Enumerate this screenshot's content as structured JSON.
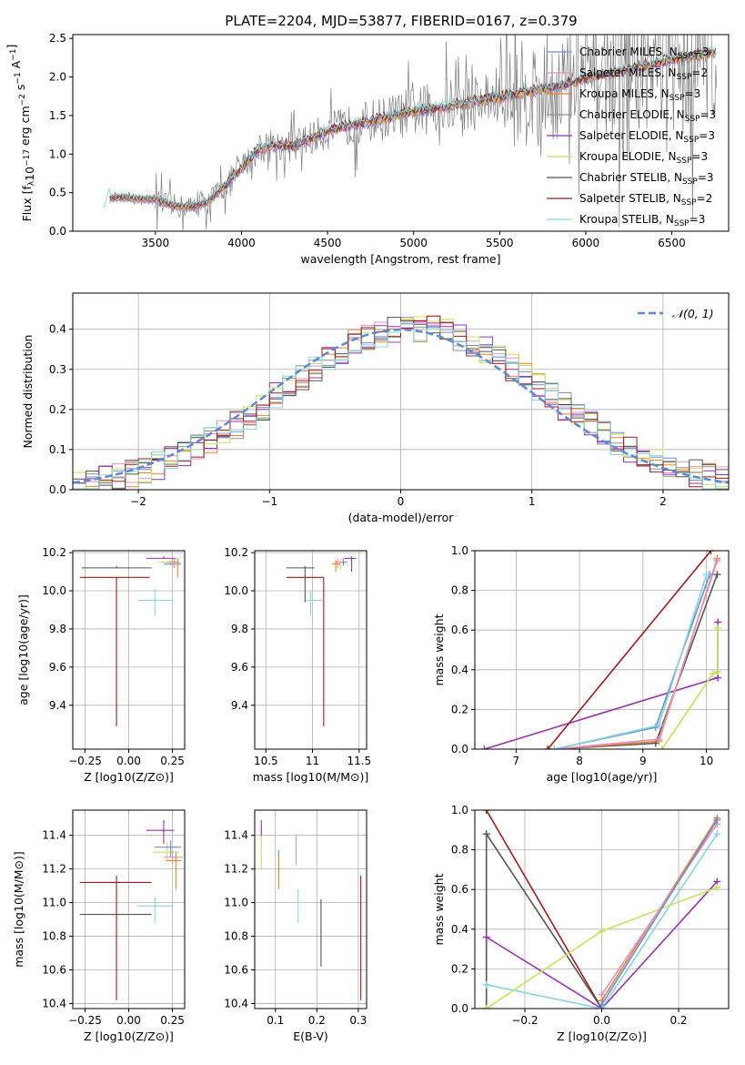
{
  "figure_title": "PLATE=2204, MJD=53877, FIBERID=0167, z=0.379",
  "series_colors": {
    "Chabrier MILES": "#6a8fd9",
    "Salpeter MILES": "#e58fc4",
    "Kroupa MILES": "#e8862a",
    "Chabrier ELODIE": "#8f8f8f",
    "Salpeter ELODIE": "#9b2fb0",
    "Kroupa ELODIE": "#c9e05a",
    "Chabrier STELIB": "#555555",
    "Salpeter STELIB": "#a31a1a",
    "Kroupa STELIB": "#86d6e0"
  },
  "chart_data": [
    {
      "id": "spectrum",
      "type": "line",
      "xlabel": "wavelength [Angstrom, rest frame]",
      "ylabel": "Flux [f_λ 10^-17 erg cm^-2 s^-1 A^-1]",
      "xlim": [
        3020,
        6830
      ],
      "ylim": [
        0,
        2.55
      ],
      "xticks": [
        3500,
        4000,
        4500,
        5000,
        5500,
        6000,
        6500
      ],
      "yticks": [
        0.0,
        0.5,
        1.0,
        1.5,
        2.0,
        2.5
      ],
      "legend_position": "upper-right",
      "legend": [
        {
          "label": "Chabrier MILES, N",
          "sub": "SSP",
          "tail": "=3",
          "color": "#6a8fd9"
        },
        {
          "label": "Salpeter MILES, N",
          "sub": "SSP",
          "tail": "=2",
          "color": "#e58fc4"
        },
        {
          "label": "Kroupa MILES, N",
          "sub": "SSP",
          "tail": "=3",
          "color": "#e8862a"
        },
        {
          "label": "Chabrier ELODIE, N",
          "sub": "SSP",
          "tail": "=3",
          "color": "#8f8f8f"
        },
        {
          "label": "Salpeter ELODIE, N",
          "sub": "SSP",
          "tail": "=3",
          "color": "#9b2fb0"
        },
        {
          "label": "Kroupa ELODIE, N",
          "sub": "SSP",
          "tail": "=3",
          "color": "#c9e05a"
        },
        {
          "label": "Chabrier STELIB, N",
          "sub": "SSP",
          "tail": "=3",
          "color": "#555555"
        },
        {
          "label": "Salpeter STELIB, N",
          "sub": "SSP",
          "tail": "=2",
          "color": "#a31a1a"
        },
        {
          "label": "Kroupa STELIB, N",
          "sub": "SSP",
          "tail": "=3",
          "color": "#86d6e0"
        }
      ],
      "data_start": 3500,
      "model_curve": {
        "x": [
          3200,
          3230,
          3300,
          3400,
          3500,
          3600,
          3700,
          3800,
          3900,
          4000,
          4100,
          4200,
          4300,
          4400,
          4500,
          4600,
          4700,
          4800,
          4900,
          5000,
          5200,
          5400,
          5600,
          5800,
          6000,
          6200,
          6400,
          6600,
          6750
        ],
        "y": [
          0.32,
          0.43,
          0.44,
          0.42,
          0.41,
          0.33,
          0.31,
          0.37,
          0.58,
          0.82,
          1.06,
          1.12,
          1.1,
          1.2,
          1.3,
          1.36,
          1.4,
          1.45,
          1.5,
          1.55,
          1.62,
          1.7,
          1.78,
          1.86,
          1.98,
          2.08,
          2.17,
          2.26,
          2.32
        ]
      }
    },
    {
      "id": "residuals",
      "type": "histogram",
      "xlabel": "(data-model)/error",
      "ylabel": "Normed distribution",
      "xlim": [
        -2.5,
        2.5
      ],
      "ylim": [
        0,
        0.49
      ],
      "xticks": [
        -2,
        -1,
        0,
        1,
        2
      ],
      "yticks": [
        0.0,
        0.1,
        0.2,
        0.3,
        0.4
      ],
      "reference_curve": {
        "label": "𝒩(0, 1)",
        "mean": 0,
        "sigma": 1,
        "color": "#5b8ad8",
        "style": "dashed"
      },
      "bin_width": 0.1,
      "approx_max": 0.47
    },
    {
      "id": "age-vs-Z",
      "type": "errorbar",
      "xlabel": "Z [log10(Z/Z⊙)]",
      "ylabel": "age [log10(age/yr)]",
      "xlim": [
        -0.32,
        0.32
      ],
      "ylim": [
        9.17,
        10.21
      ],
      "xticks": [
        -0.25,
        0.0,
        0.25
      ],
      "xticklabels": [
        "−0.25",
        "0.00",
        "0.25"
      ],
      "yticks": [
        9.4,
        9.6,
        9.8,
        10.0,
        10.2
      ],
      "points": [
        {
          "series": "Chabrier STELIB",
          "x": -0.07,
          "xerr": [
            0.2,
            0.2
          ],
          "y": 10.12,
          "yerr": [
            0.0,
            0.01
          ],
          "color": "#555555"
        },
        {
          "series": "Salpeter STELIB",
          "x": -0.07,
          "xerr": [
            0.21,
            0.19
          ],
          "y": 10.07,
          "yerr": [
            0.78,
            0.0
          ],
          "color": "#a31a1a"
        },
        {
          "series": "Kroupa STELIB",
          "x": 0.15,
          "xerr": [
            0.1,
            0.1
          ],
          "y": 9.95,
          "yerr": [
            0.08,
            0.06
          ],
          "color": "#86d6e0"
        },
        {
          "series": "Salpeter ELODIE",
          "x": 0.2,
          "xerr": [
            0.1,
            0.07
          ],
          "y": 10.17,
          "yerr": [
            0.0,
            0.01
          ],
          "color": "#9b2fb0"
        },
        {
          "series": "Kroupa ELODIE",
          "x": 0.24,
          "xerr": [
            0.07,
            0.05
          ],
          "y": 10.15,
          "yerr": [
            0.02,
            0.02
          ],
          "color": "#c9e05a"
        },
        {
          "series": "Chabrier MILES",
          "x": 0.26,
          "xerr": [
            0.06,
            0.04
          ],
          "y": 10.14,
          "yerr": [
            0.02,
            0.03
          ],
          "color": "#6a8fd9"
        },
        {
          "series": "Salpeter MILES",
          "x": 0.26,
          "xerr": [
            0.04,
            0.03
          ],
          "y": 10.15,
          "yerr": [
            0.03,
            0.02
          ],
          "color": "#e58fc4"
        },
        {
          "series": "Kroupa MILES",
          "x": 0.28,
          "xerr": [
            0.03,
            0.01
          ],
          "y": 10.15,
          "yerr": [
            0.08,
            0.02
          ],
          "color": "#e8862a"
        }
      ]
    },
    {
      "id": "age-vs-mass",
      "type": "errorbar",
      "xlabel": "mass [log10(M/M⊙)]",
      "ylabel": "",
      "xlim": [
        10.38,
        11.58
      ],
      "ylim": [
        9.17,
        10.21
      ],
      "xticks": [
        10.5,
        11.0,
        11.5
      ],
      "yticks": [
        9.4,
        9.6,
        9.8,
        10.0,
        10.2
      ],
      "points": [
        {
          "series": "Chabrier STELIB",
          "x": 10.92,
          "xerr": [
            0.2,
            0.1
          ],
          "y": 10.12,
          "yerr": [
            0.18,
            0.01
          ],
          "color": "#555555"
        },
        {
          "series": "Salpeter STELIB",
          "x": 11.12,
          "xerr": [
            0.4,
            0.0
          ],
          "y": 10.07,
          "yerr": [
            0.78,
            0.0
          ],
          "color": "#a31a1a"
        },
        {
          "series": "Kroupa STELIB",
          "x": 10.98,
          "xerr": [
            0.05,
            0.12
          ],
          "y": 9.95,
          "yerr": [
            0.08,
            0.05
          ],
          "color": "#86d6e0"
        },
        {
          "series": "Salpeter ELODIE",
          "x": 11.42,
          "xerr": [
            0.08,
            0.05
          ],
          "y": 10.17,
          "yerr": [
            0.07,
            0.01
          ],
          "color": "#9b2fb0"
        },
        {
          "series": "Kroupa ELODIE",
          "x": 11.3,
          "xerr": [
            0.05,
            0.05
          ],
          "y": 10.15,
          "yerr": [
            0.04,
            0.02
          ],
          "color": "#c9e05a"
        },
        {
          "series": "Chabrier MILES",
          "x": 11.33,
          "xerr": [
            0.06,
            0.04
          ],
          "y": 10.15,
          "yerr": [
            0.02,
            0.02
          ],
          "color": "#6a8fd9"
        },
        {
          "series": "Salpeter MILES",
          "x": 11.27,
          "xerr": [
            0.03,
            0.04
          ],
          "y": 10.15,
          "yerr": [
            0.03,
            0.02
          ],
          "color": "#e58fc4"
        },
        {
          "series": "Kroupa MILES",
          "x": 11.25,
          "xerr": [
            0.04,
            0.05
          ],
          "y": 10.14,
          "yerr": [
            0.04,
            0.02
          ],
          "color": "#e8862a"
        }
      ]
    },
    {
      "id": "weight-vs-age",
      "type": "line",
      "xlabel": "age [log10(age/yr)]",
      "ylabel": "mass weight",
      "xlim": [
        6.35,
        10.35
      ],
      "ylim": [
        0,
        1.0
      ],
      "xticks": [
        7,
        8,
        9,
        10
      ],
      "yticks": [
        0.0,
        0.2,
        0.4,
        0.6,
        0.8,
        1.0
      ],
      "series": [
        {
          "name": "Salpeter ELODIE",
          "color": "#9b2fb0",
          "x": [
            6.5,
            10.18,
            10.18
          ],
          "y": [
            0.0,
            0.36,
            0.64
          ]
        },
        {
          "name": "Salpeter STELIB",
          "color": "#a31a1a",
          "x": [
            7.5,
            10.07
          ],
          "y": [
            0.0,
            1.0
          ]
        },
        {
          "name": "Chabrier STELIB",
          "color": "#555555",
          "x": [
            7.6,
            9.2,
            10.17
          ],
          "y": [
            0.0,
            0.03,
            0.88
          ]
        },
        {
          "name": "Kroupa MILES",
          "color": "#e8862a",
          "x": [
            7.6,
            9.25,
            10.17
          ],
          "y": [
            0.0,
            0.04,
            0.96
          ]
        },
        {
          "name": "Salpeter MILES",
          "color": "#e58fc4",
          "x": [
            7.6,
            9.25,
            10.17
          ],
          "y": [
            0.0,
            0.05,
            0.95
          ]
        },
        {
          "name": "Chabrier MILES",
          "color": "#6a8fd9",
          "x": [
            7.6,
            9.2,
            10.05
          ],
          "y": [
            0.0,
            0.11,
            0.88
          ]
        },
        {
          "name": "Kroupa STELIB",
          "color": "#86d6e0",
          "x": [
            7.6,
            9.25,
            10.0
          ],
          "y": [
            0.0,
            0.12,
            0.88
          ]
        },
        {
          "name": "Kroupa ELODIE",
          "color": "#c9e05a",
          "x": [
            9.3,
            10.1,
            10.18,
            10.18
          ],
          "y": [
            0.0,
            0.38,
            0.39,
            0.61
          ]
        }
      ]
    },
    {
      "id": "mass-vs-Z",
      "type": "errorbar",
      "xlabel": "Z [log10(Z/Z⊙)]",
      "ylabel": "mass [log10(M/M⊙)]",
      "xlim": [
        -0.32,
        0.32
      ],
      "ylim": [
        10.37,
        11.55
      ],
      "xticks": [
        -0.25,
        0.0,
        0.25
      ],
      "xticklabels": [
        "−0.25",
        "0.00",
        "0.25"
      ],
      "yticks": [
        10.4,
        10.6,
        10.8,
        11.0,
        11.2,
        11.4
      ],
      "points": [
        {
          "series": "Chabrier STELIB",
          "x": -0.07,
          "xerr": [
            0.21,
            0.2
          ],
          "y": 10.93,
          "yerr": [
            0.0,
            0.0
          ],
          "color": "#555555"
        },
        {
          "series": "Salpeter STELIB",
          "x": -0.07,
          "xerr": [
            0.21,
            0.2
          ],
          "y": 11.12,
          "yerr": [
            0.7,
            0.04
          ],
          "color": "#a31a1a"
        },
        {
          "series": "Kroupa STELIB",
          "x": 0.15,
          "xerr": [
            0.1,
            0.1
          ],
          "y": 10.98,
          "yerr": [
            0.1,
            0.05
          ],
          "color": "#86d6e0"
        },
        {
          "series": "Salpeter ELODIE",
          "x": 0.2,
          "xerr": [
            0.1,
            0.06
          ],
          "y": 11.43,
          "yerr": [
            0.08,
            0.06
          ],
          "color": "#9b2fb0"
        },
        {
          "series": "Kroupa ELODIE",
          "x": 0.22,
          "xerr": [
            0.08,
            0.07
          ],
          "y": 11.3,
          "yerr": [
            0.05,
            0.06
          ],
          "color": "#c9e05a"
        },
        {
          "series": "Chabrier MILES",
          "x": 0.24,
          "xerr": [
            0.09,
            0.06
          ],
          "y": 11.33,
          "yerr": [
            0.06,
            0.04
          ],
          "color": "#6a8fd9"
        },
        {
          "series": "Salpeter MILES",
          "x": 0.25,
          "xerr": [
            0.05,
            0.06
          ],
          "y": 11.27,
          "yerr": [
            0.04,
            0.03
          ],
          "color": "#e58fc4"
        },
        {
          "series": "Kroupa MILES",
          "x": 0.27,
          "xerr": [
            0.06,
            0.03
          ],
          "y": 11.25,
          "yerr": [
            0.17,
            0.05
          ],
          "color": "#e8862a"
        }
      ]
    },
    {
      "id": "mass-vs-ebv",
      "type": "errorbar",
      "xlabel": "E(B-V)",
      "ylabel": "",
      "xlim": [
        0.05,
        0.32
      ],
      "ylim": [
        10.37,
        11.55
      ],
      "xticks": [
        0.1,
        0.2,
        0.3
      ],
      "yticks": [
        10.4,
        10.6,
        10.8,
        11.0,
        11.2,
        11.4
      ],
      "points": [
        {
          "series": "Salpeter ELODIE",
          "x": 0.066,
          "xerr": [
            0,
            0
          ],
          "y": 11.43,
          "yerr": [
            0.04,
            0.06
          ],
          "color": "#9b2fb0"
        },
        {
          "series": "Kroupa ELODIE",
          "x": 0.066,
          "xerr": [
            0,
            0
          ],
          "y": 11.3,
          "yerr": [
            0.1,
            0.1
          ],
          "color": "#c9e05a"
        },
        {
          "series": "Chabrier MILES",
          "x": 0.108,
          "xerr": [
            0,
            0
          ],
          "y": 11.22,
          "yerr": [
            0.08,
            0.09
          ],
          "color": "#6a8fd9"
        },
        {
          "series": "Kroupa MILES",
          "x": 0.108,
          "xerr": [
            0,
            0
          ],
          "y": 11.18,
          "yerr": [
            0.1,
            0.1
          ],
          "color": "#e8862a"
        },
        {
          "series": "Salpeter MILES",
          "x": 0.15,
          "xerr": [
            0,
            0
          ],
          "y": 11.3,
          "yerr": [
            0.08,
            0.1
          ],
          "color": "#e58fc4"
        },
        {
          "series": "Kroupa STELIB",
          "x": 0.155,
          "xerr": [
            0,
            0
          ],
          "y": 10.98,
          "yerr": [
            0.1,
            0.1
          ],
          "color": "#86d6e0"
        },
        {
          "series": "Chabrier STELIB",
          "x": 0.21,
          "xerr": [
            0,
            0
          ],
          "y": 10.82,
          "yerr": [
            0.2,
            0.2
          ],
          "color": "#555555"
        },
        {
          "series": "Salpeter STELIB",
          "x": 0.306,
          "xerr": [
            0,
            0
          ],
          "y": 10.79,
          "yerr": [
            0.37,
            0.37
          ],
          "color": "#a31a1a"
        }
      ]
    },
    {
      "id": "weight-vs-Z",
      "type": "line",
      "xlabel": "Z [log10(Z/Z⊙)]",
      "ylabel": "mass weight",
      "xlim": [
        -0.33,
        0.33
      ],
      "ylim": [
        0,
        1.0
      ],
      "xticks": [
        -0.2,
        0.0,
        0.2
      ],
      "xticklabels": [
        "−0.2",
        "0.0",
        "0.2"
      ],
      "yticks": [
        0.0,
        0.2,
        0.4,
        0.6,
        0.8,
        1.0
      ],
      "series": [
        {
          "name": "Salpeter STELIB",
          "color": "#a31a1a",
          "x": [
            -0.3,
            0.0
          ],
          "y": [
            1.0,
            0.0
          ]
        },
        {
          "name": "Chabrier STELIB",
          "color": "#555555",
          "x": [
            -0.3,
            -0.3,
            0.0
          ],
          "y": [
            0.0,
            0.88,
            0.0
          ]
        },
        {
          "name": "Salpeter ELODIE",
          "color": "#9b2fb0",
          "x": [
            -0.3,
            0.0,
            0.3
          ],
          "y": [
            0.36,
            0.0,
            0.64
          ]
        },
        {
          "name": "Kroupa STELIB",
          "color": "#86d6e0",
          "x": [
            -0.3,
            0.0,
            0.3
          ],
          "y": [
            0.12,
            0.0,
            0.88
          ]
        },
        {
          "name": "Kroupa ELODIE",
          "color": "#c9e05a",
          "x": [
            -0.3,
            0.0,
            0.3
          ],
          "y": [
            0.0,
            0.39,
            0.61
          ]
        },
        {
          "name": "Kroupa MILES",
          "color": "#e8862a",
          "x": [
            0.0,
            0.3
          ],
          "y": [
            0.04,
            0.96
          ]
        },
        {
          "name": "Salpeter MILES",
          "color": "#e58fc4",
          "x": [
            0.0,
            0.3
          ],
          "y": [
            0.07,
            0.93
          ]
        },
        {
          "name": "Chabrier MILES",
          "color": "#6a8fd9",
          "x": [
            0.0,
            0.3
          ],
          "y": [
            0.02,
            0.95
          ]
        }
      ]
    }
  ]
}
